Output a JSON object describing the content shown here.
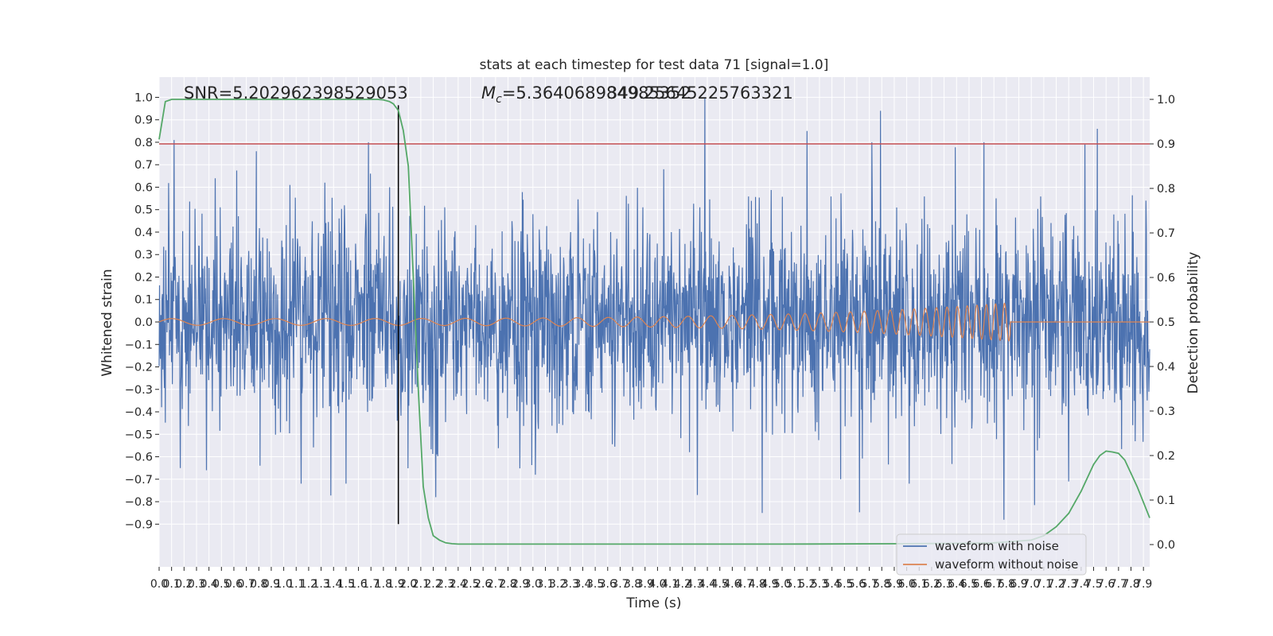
{
  "chart_data": {
    "type": "line",
    "title": "stats at each timestep for test data 71 [signal=1.0]",
    "xlabel": "Time (s)",
    "ylabel": "Whitened strain",
    "y2label": "Detection probability",
    "xlim": [
      0.0,
      7.95
    ],
    "ylim": [
      -1.09,
      1.09
    ],
    "y2lim": [
      -0.05,
      1.05
    ],
    "x_ticks": [
      0.0,
      0.1,
      0.2,
      0.3,
      0.4,
      0.5,
      0.6,
      0.7,
      0.8,
      0.9,
      1.0,
      1.1,
      1.2,
      1.3,
      1.4,
      1.5,
      1.6,
      1.7,
      1.8,
      1.9,
      2.0,
      2.1,
      2.2,
      2.3,
      2.4,
      2.5,
      2.6,
      2.7,
      2.8,
      2.9,
      3.0,
      3.1,
      3.2,
      3.3,
      3.4,
      3.5,
      3.6,
      3.7,
      3.8,
      3.9,
      4.0,
      4.1,
      4.2,
      4.3,
      4.4,
      4.5,
      4.6,
      4.7,
      4.8,
      4.9,
      5.0,
      5.1,
      5.2,
      5.3,
      5.4,
      5.5,
      5.6,
      5.7,
      5.8,
      5.9,
      6.0,
      6.1,
      6.2,
      6.3,
      6.4,
      6.5,
      6.6,
      6.7,
      6.8,
      6.9,
      7.0,
      7.1,
      7.2,
      7.3,
      7.4,
      7.5,
      7.6,
      7.7,
      7.8,
      7.9
    ],
    "y_ticks": [
      -0.9,
      -0.8,
      -0.7,
      -0.6,
      -0.5,
      -0.4,
      -0.3,
      -0.2,
      -0.1,
      0.0,
      0.1,
      0.2,
      0.3,
      0.4,
      0.5,
      0.6,
      0.7,
      0.8,
      0.9,
      1.0
    ],
    "y2_ticks": [
      0.0,
      0.1,
      0.2,
      0.3,
      0.4,
      0.5,
      0.6,
      0.7,
      0.8,
      0.9,
      1.0
    ],
    "annotations": {
      "snr": "SNR=5.202962398529053",
      "mc_symbol": "M",
      "mc_sub": "c",
      "mc_value": "=5.364068984985352",
      "overlap_value": "349.25645225763321"
    },
    "threshold_line": {
      "axis": "y2",
      "value": 0.9,
      "color": "#c44e52"
    },
    "marker_line": {
      "x": 1.92,
      "color": "#000000"
    },
    "series": [
      {
        "name": "waveform with noise",
        "axis": "y",
        "color": "#4c72b0",
        "noise_envelope": {
          "typical_amplitude": 0.4,
          "max_value": 1.0,
          "min_value": -0.9
        },
        "peaks_pos": [
          [
            0.12,
            0.81
          ],
          [
            0.45,
            0.64
          ],
          [
            0.78,
            0.76
          ],
          [
            1.05,
            0.61
          ],
          [
            1.33,
            0.62
          ],
          [
            1.68,
            0.8
          ],
          [
            1.85,
            0.6
          ],
          [
            3.0,
            0.48
          ],
          [
            4.05,
            0.68
          ],
          [
            4.38,
            1.0
          ],
          [
            5.2,
            0.85
          ],
          [
            5.72,
            0.8
          ],
          [
            5.79,
            0.94
          ],
          [
            6.62,
            0.8
          ],
          [
            7.43,
            0.79
          ],
          [
            7.53,
            0.86
          ],
          [
            7.92,
            0.54
          ]
        ],
        "peaks_neg": [
          [
            0.17,
            -0.65
          ],
          [
            0.38,
            -0.66
          ],
          [
            0.81,
            -0.64
          ],
          [
            1.14,
            -0.72
          ],
          [
            1.5,
            -0.72
          ],
          [
            2.22,
            -0.78
          ],
          [
            3.02,
            -0.68
          ],
          [
            4.32,
            -0.77
          ],
          [
            4.84,
            -0.85
          ],
          [
            5.47,
            -0.7
          ],
          [
            6.02,
            -0.72
          ],
          [
            6.78,
            -0.88
          ],
          [
            7.3,
            -0.71
          ]
        ]
      },
      {
        "name": "waveform without noise",
        "axis": "y",
        "color": "#dd8452",
        "chirp": {
          "t_start": 0.0,
          "t_merger": 6.83,
          "amp_start": 0.015,
          "amp_peak": 0.085,
          "freq_start": 20,
          "freq_end": 120
        }
      },
      {
        "name": "Detection probability",
        "axis": "y2",
        "color": "#55a868",
        "x": [
          0.0,
          0.05,
          0.1,
          0.15,
          0.2,
          0.3,
          0.5,
          1.0,
          1.5,
          1.7,
          1.75,
          1.8,
          1.85,
          1.88,
          1.92,
          1.96,
          2.0,
          2.04,
          2.08,
          2.12,
          2.16,
          2.2,
          2.25,
          2.3,
          2.35,
          2.4,
          2.5,
          3.0,
          4.0,
          5.0,
          6.0,
          6.5,
          6.7,
          7.0,
          7.1,
          7.2,
          7.3,
          7.4,
          7.45,
          7.5,
          7.55,
          7.6,
          7.65,
          7.7,
          7.75,
          7.8,
          7.85,
          7.95
        ],
        "y": [
          0.91,
          0.995,
          1.0,
          1.0,
          1.0,
          1.0,
          1.0,
          1.0,
          1.0,
          1.0,
          1.0,
          0.999,
          0.995,
          0.99,
          0.975,
          0.93,
          0.85,
          0.6,
          0.35,
          0.13,
          0.06,
          0.02,
          0.01,
          0.004,
          0.002,
          0.001,
          0.001,
          0.001,
          0.001,
          0.001,
          0.002,
          0.003,
          0.004,
          0.01,
          0.02,
          0.04,
          0.07,
          0.12,
          0.15,
          0.18,
          0.2,
          0.21,
          0.208,
          0.205,
          0.19,
          0.16,
          0.13,
          0.06
        ]
      }
    ],
    "legend": {
      "placement": "lower-right",
      "entries": [
        "waveform with noise",
        "waveform without noise"
      ]
    },
    "grid": true,
    "colors": {
      "background": "#eaeaf2",
      "grid": "#ffffff"
    }
  }
}
